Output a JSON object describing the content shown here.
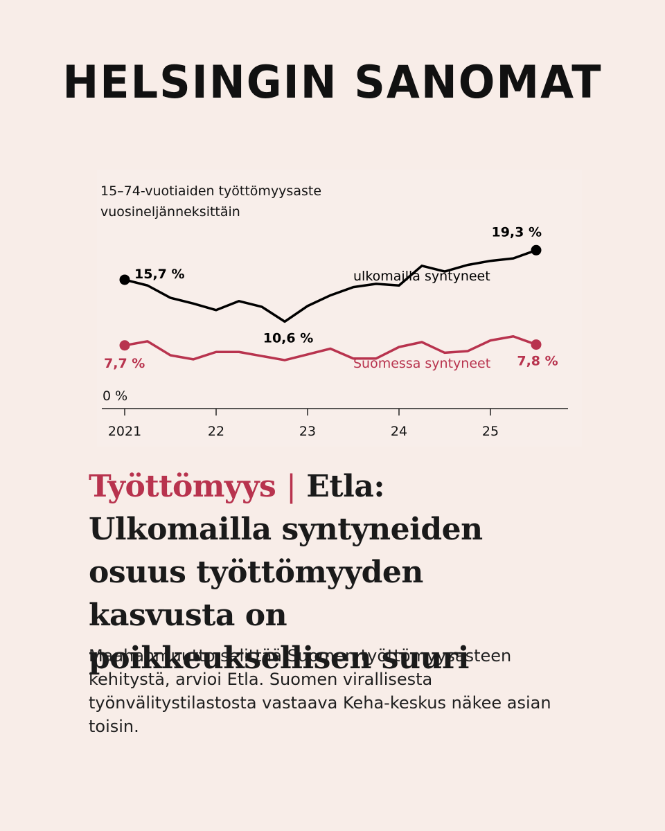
{
  "masthead": "HELSINGIN SANOMAT",
  "headline": {
    "kicker": "Työttömyys",
    "separator": "|",
    "title": "Etla: Ulkomailla syntyneiden osuus työttömyyden kasvusta on poikkeuksellisen suuri"
  },
  "lead": "Maahanmuutto selittää Suomen työttömyysasteen kehitystä, arvioi Etla. Suomen virallisesta työnvälitystilastosta vastaava Keha-keskus näkee asian toisin.",
  "colors": {
    "foreign": "#000000",
    "finnish": "#b8334e",
    "background": "#f8ede8"
  },
  "chart_data": {
    "type": "line",
    "title": "15–74-vuotiaiden työttömyysaste vuosineljänneksittäin",
    "title_lines": [
      "15–74-vuotiaiden työttömyysaste",
      "vuosineljänneksittäin"
    ],
    "xlabel": "",
    "ylabel": "",
    "y_zero_label": "0 %",
    "ylim": [
      0,
      20
    ],
    "x_ticks": [
      {
        "label": "2021",
        "x": 2021.0
      },
      {
        "label": "22",
        "x": 2022.0
      },
      {
        "label": "23",
        "x": 2023.0
      },
      {
        "label": "24",
        "x": 2024.0
      },
      {
        "label": "25",
        "x": 2025.0
      }
    ],
    "x": [
      2021.0,
      2021.25,
      2021.5,
      2021.75,
      2022.0,
      2022.25,
      2022.5,
      2022.75,
      2023.0,
      2023.25,
      2023.5,
      2023.75,
      2024.0,
      2024.25,
      2024.5,
      2024.75,
      2025.0,
      2025.25,
      2025.5
    ],
    "series": [
      {
        "name": "ulkomailla syntyneet",
        "color": "#000000",
        "values": [
          15.7,
          15.0,
          13.5,
          12.8,
          12.0,
          13.1,
          12.4,
          10.6,
          12.5,
          13.8,
          14.8,
          15.2,
          15.0,
          17.4,
          16.7,
          17.5,
          18.0,
          18.3,
          19.3
        ],
        "start_label": "15,7 %",
        "end_label": "19,3 %",
        "min_label": "10,6 %"
      },
      {
        "name": "Suomessa syntyneet",
        "color": "#b8334e",
        "values": [
          7.7,
          8.2,
          6.5,
          6.0,
          6.9,
          6.9,
          6.4,
          5.9,
          6.6,
          7.3,
          6.1,
          6.1,
          7.5,
          8.1,
          6.8,
          7.0,
          8.3,
          8.8,
          7.8
        ],
        "start_label": "7,7 %",
        "end_label": "7,8 %"
      }
    ],
    "grid": false
  }
}
